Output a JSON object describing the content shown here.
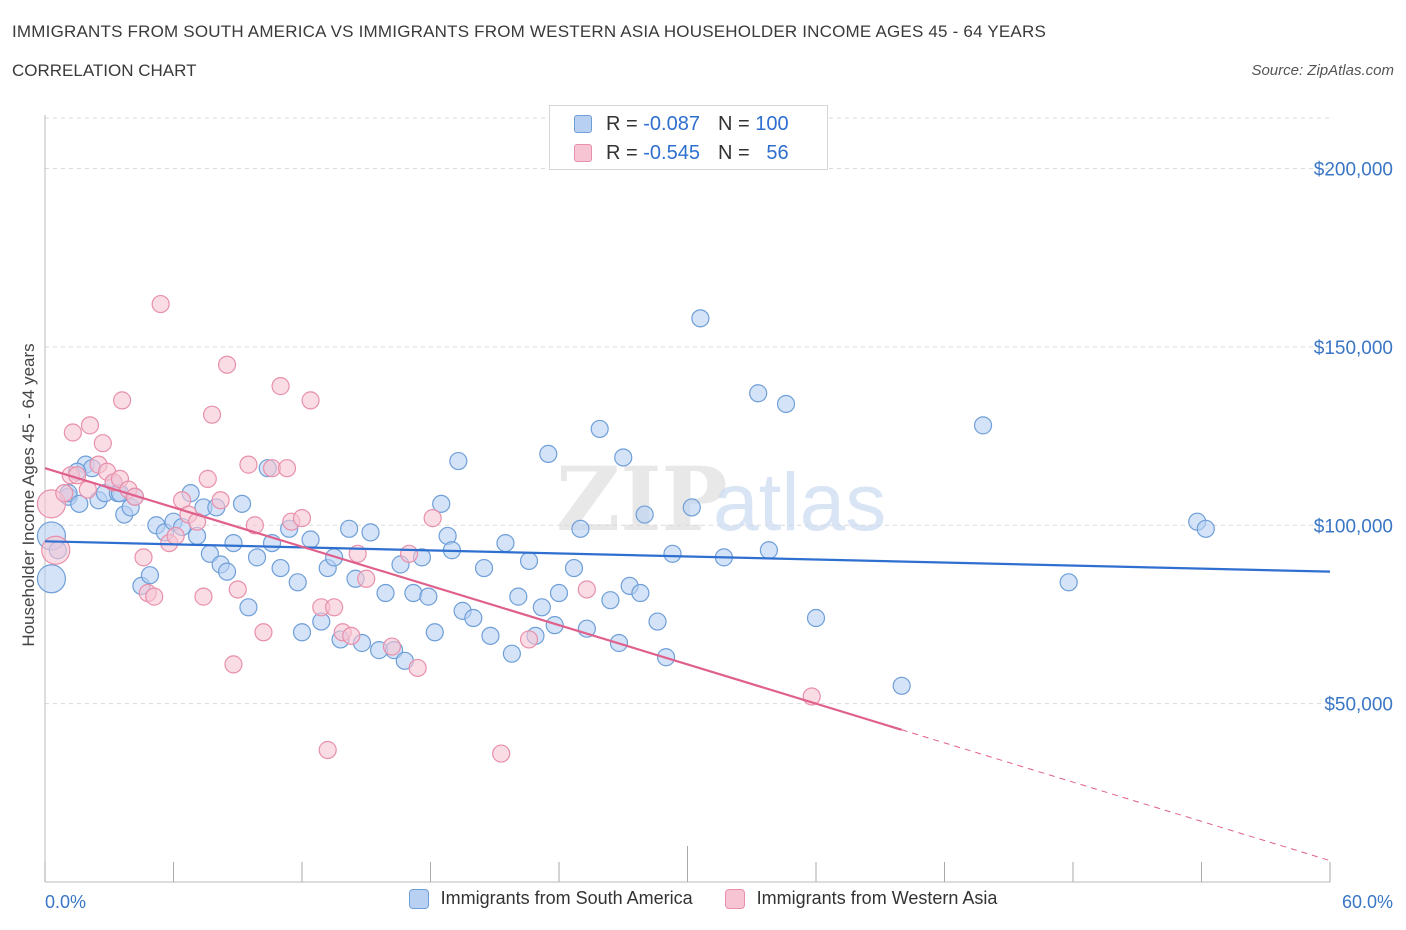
{
  "header": {
    "title": "IMMIGRANTS FROM SOUTH AMERICA VS IMMIGRANTS FROM WESTERN ASIA HOUSEHOLDER INCOME AGES 45 - 64 YEARS",
    "subtitle": "CORRELATION CHART",
    "source": "Source: ZipAtlas.com"
  },
  "legend_top": {
    "rows": [
      {
        "r_label": "R =",
        "r_value": "-0.087",
        "n_label": "N =",
        "n_value": "100"
      },
      {
        "r_label": "R =",
        "r_value": "-0.545",
        "n_label": "N =",
        "n_value": "56"
      }
    ]
  },
  "colors": {
    "blue_fill": "#b8d1f3",
    "blue_stroke": "#6f9fd8",
    "blue_line": "#2f6fcf",
    "pink_fill": "#f7c4d4",
    "pink_stroke": "#e890ab",
    "pink_line": "#e0608c",
    "tick_label": "#3a76c6",
    "grid": "#d9d9d9"
  },
  "chart_data": {
    "type": "scatter",
    "title": "IMMIGRANTS FROM SOUTH AMERICA VS IMMIGRANTS FROM WESTERN ASIA HOUSEHOLDER INCOME AGES 45 - 64 YEARS",
    "xlabel": "",
    "ylabel": "Householder Income Ages 45 - 64 years",
    "xlim": [
      0,
      60
    ],
    "ylim": [
      0,
      215000
    ],
    "x_tick_labels": [
      "0.0%",
      "60.0%"
    ],
    "y_ticks": [
      50000,
      100000,
      150000,
      200000
    ],
    "y_tick_labels": [
      "$50,000",
      "$100,000",
      "$150,000",
      "$200,000"
    ],
    "grid": true,
    "legend_position": "top-center",
    "watermark": "ZIPatlas",
    "series": [
      {
        "name": "Immigrants from South America",
        "color": "#b8d1f3",
        "r": -0.087,
        "n": 100,
        "trend": {
          "x": [
            0,
            60
          ],
          "y": [
            95500,
            87000
          ],
          "dashed_from_x": null
        },
        "points": [
          [
            0.3,
            85000
          ],
          [
            0.3,
            97000
          ],
          [
            1.1,
            108000
          ],
          [
            1.1,
            109000
          ],
          [
            1.6,
            106000
          ],
          [
            1.9,
            117000
          ],
          [
            2.2,
            116000
          ],
          [
            2.5,
            107000
          ],
          [
            2.8,
            109000
          ],
          [
            3.2,
            112000
          ],
          [
            3.4,
            109000
          ],
          [
            3.5,
            109000
          ],
          [
            3.7,
            103000
          ],
          [
            4.0,
            105000
          ],
          [
            4.2,
            108000
          ],
          [
            4.5,
            83000
          ],
          [
            4.9,
            86000
          ],
          [
            5.2,
            100000
          ],
          [
            5.6,
            98000
          ],
          [
            6.0,
            101000
          ],
          [
            6.4,
            99500
          ],
          [
            6.8,
            109000
          ],
          [
            7.1,
            97000
          ],
          [
            7.4,
            105000
          ],
          [
            7.7,
            92000
          ],
          [
            8.0,
            105000
          ],
          [
            8.2,
            89000
          ],
          [
            8.5,
            87000
          ],
          [
            8.8,
            95000
          ],
          [
            9.2,
            106000
          ],
          [
            9.5,
            77000
          ],
          [
            9.9,
            91000
          ],
          [
            10.4,
            116000
          ],
          [
            10.6,
            95000
          ],
          [
            11.0,
            88000
          ],
          [
            11.4,
            99000
          ],
          [
            11.8,
            84000
          ],
          [
            12.0,
            70000
          ],
          [
            12.4,
            96000
          ],
          [
            12.9,
            73000
          ],
          [
            13.2,
            88000
          ],
          [
            13.5,
            91000
          ],
          [
            13.8,
            68000
          ],
          [
            14.2,
            99000
          ],
          [
            14.5,
            85000
          ],
          [
            14.8,
            67000
          ],
          [
            15.2,
            98000
          ],
          [
            15.6,
            65000
          ],
          [
            15.9,
            81000
          ],
          [
            16.3,
            65000
          ],
          [
            16.6,
            89000
          ],
          [
            16.8,
            62000
          ],
          [
            17.2,
            81000
          ],
          [
            17.6,
            91000
          ],
          [
            17.9,
            80000
          ],
          [
            18.2,
            70000
          ],
          [
            18.5,
            106000
          ],
          [
            18.8,
            97000
          ],
          [
            19.0,
            93000
          ],
          [
            19.3,
            118000
          ],
          [
            19.5,
            76000
          ],
          [
            20.0,
            74000
          ],
          [
            20.5,
            88000
          ],
          [
            20.8,
            69000
          ],
          [
            21.5,
            95000
          ],
          [
            21.8,
            64000
          ],
          [
            22.1,
            80000
          ],
          [
            22.6,
            90000
          ],
          [
            22.9,
            69000
          ],
          [
            23.2,
            77000
          ],
          [
            23.5,
            120000
          ],
          [
            23.8,
            72000
          ],
          [
            24.0,
            81000
          ],
          [
            24.7,
            88000
          ],
          [
            25.0,
            99000
          ],
          [
            25.3,
            71000
          ],
          [
            25.9,
            127000
          ],
          [
            26.4,
            79000
          ],
          [
            26.8,
            67000
          ],
          [
            27.0,
            119000
          ],
          [
            27.3,
            83000
          ],
          [
            27.8,
            81000
          ],
          [
            28.0,
            103000
          ],
          [
            28.6,
            73000
          ],
          [
            29.0,
            63000
          ],
          [
            29.3,
            92000
          ],
          [
            30.2,
            105000
          ],
          [
            30.6,
            158000
          ],
          [
            31.7,
            91000
          ],
          [
            33.3,
            137000
          ],
          [
            33.8,
            93000
          ],
          [
            34.6,
            134000
          ],
          [
            36.0,
            74000
          ],
          [
            40.0,
            55000
          ],
          [
            43.8,
            128000
          ],
          [
            47.8,
            84000
          ],
          [
            53.8,
            101000
          ],
          [
            54.2,
            99000
          ],
          [
            0.6,
            93000
          ],
          [
            1.5,
            115000
          ]
        ]
      },
      {
        "name": "Immigrants from Western Asia",
        "color": "#f7c4d4",
        "r": -0.545,
        "n": 56,
        "trend": {
          "x": [
            0,
            60
          ],
          "y": [
            116000,
            6000
          ],
          "dashed_from_x": 40
        },
        "points": [
          [
            0.3,
            106000
          ],
          [
            0.5,
            93000
          ],
          [
            0.9,
            109000
          ],
          [
            1.2,
            114000
          ],
          [
            1.3,
            126000
          ],
          [
            1.5,
            114000
          ],
          [
            2.0,
            110000
          ],
          [
            2.1,
            128000
          ],
          [
            2.5,
            117000
          ],
          [
            2.7,
            123000
          ],
          [
            2.9,
            115000
          ],
          [
            3.2,
            112000
          ],
          [
            3.5,
            113000
          ],
          [
            3.6,
            135000
          ],
          [
            3.9,
            110000
          ],
          [
            4.2,
            108000
          ],
          [
            4.6,
            91000
          ],
          [
            4.8,
            81000
          ],
          [
            5.1,
            80000
          ],
          [
            5.4,
            162000
          ],
          [
            5.8,
            95000
          ],
          [
            6.1,
            97000
          ],
          [
            6.4,
            107000
          ],
          [
            6.7,
            103000
          ],
          [
            7.1,
            101000
          ],
          [
            7.4,
            80000
          ],
          [
            7.6,
            113000
          ],
          [
            7.8,
            131000
          ],
          [
            8.2,
            107000
          ],
          [
            8.5,
            145000
          ],
          [
            8.8,
            61000
          ],
          [
            9.0,
            82000
          ],
          [
            9.5,
            117000
          ],
          [
            9.8,
            100000
          ],
          [
            10.2,
            70000
          ],
          [
            10.6,
            116000
          ],
          [
            11.0,
            139000
          ],
          [
            11.3,
            116000
          ],
          [
            11.5,
            101000
          ],
          [
            12.0,
            102000
          ],
          [
            12.4,
            135000
          ],
          [
            12.9,
            77000
          ],
          [
            13.2,
            37000
          ],
          [
            13.5,
            77000
          ],
          [
            13.9,
            70000
          ],
          [
            14.3,
            69000
          ],
          [
            14.6,
            92000
          ],
          [
            15.0,
            85000
          ],
          [
            16.2,
            66000
          ],
          [
            17.0,
            92000
          ],
          [
            17.4,
            60000
          ],
          [
            18.1,
            102000
          ],
          [
            21.3,
            36000
          ],
          [
            22.6,
            68000
          ],
          [
            25.3,
            82000
          ],
          [
            35.8,
            52000
          ]
        ]
      }
    ]
  }
}
